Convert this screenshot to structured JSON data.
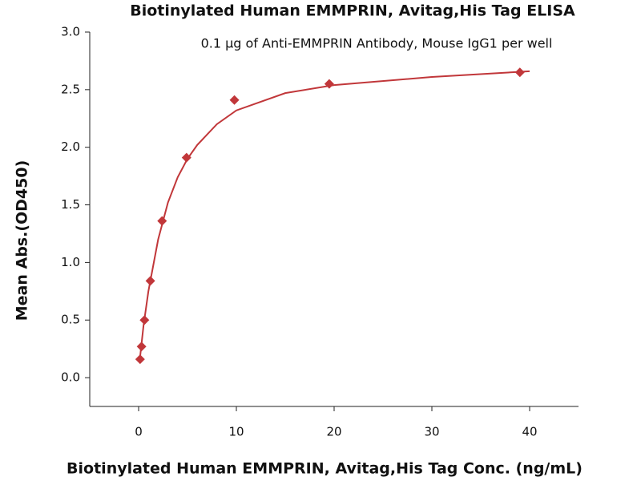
{
  "chart_data": {
    "type": "scatter",
    "title": "Biotinylated Human EMMPRIN, Avitag,His Tag ELISA",
    "subtitle": "0.1 μg of Anti-EMMPRIN Antibody, Mouse IgG1 per well",
    "x_label": "Biotinylated Human EMMPRIN, Avitag,His Tag Conc. (ng/mL)",
    "y_label": "Mean Abs.(OD450)",
    "x": [
      0.15,
      0.3,
      0.6,
      1.2,
      2.4,
      4.9,
      9.8,
      19.5,
      39
    ],
    "values": [
      0.16,
      0.27,
      0.5,
      0.84,
      1.36,
      1.91,
      2.41,
      2.55,
      2.65
    ],
    "color": "#c1373a",
    "fit": {
      "x": [
        0.15,
        0.5,
        1,
        2,
        3,
        4,
        5,
        6,
        8,
        10,
        15,
        20,
        30,
        40
      ],
      "values": [
        0.18,
        0.45,
        0.75,
        1.2,
        1.52,
        1.74,
        1.9,
        2.02,
        2.2,
        2.32,
        2.47,
        2.54,
        2.61,
        2.66
      ]
    },
    "xlim": [
      -5,
      45
    ],
    "xticks": [
      0,
      10,
      20,
      30,
      40
    ],
    "ylim": [
      -0.25,
      3.0
    ],
    "yticks": [
      {
        "value": 0,
        "label": "0.0"
      },
      {
        "value": 0.5,
        "label": "0.5"
      },
      {
        "value": 1,
        "label": "1.0"
      },
      {
        "value": 1.5,
        "label": "1.5"
      },
      {
        "value": 2,
        "label": "2.0"
      },
      {
        "value": 2.5,
        "label": "2.5"
      },
      {
        "value": 3,
        "label": "3.0"
      }
    ]
  }
}
